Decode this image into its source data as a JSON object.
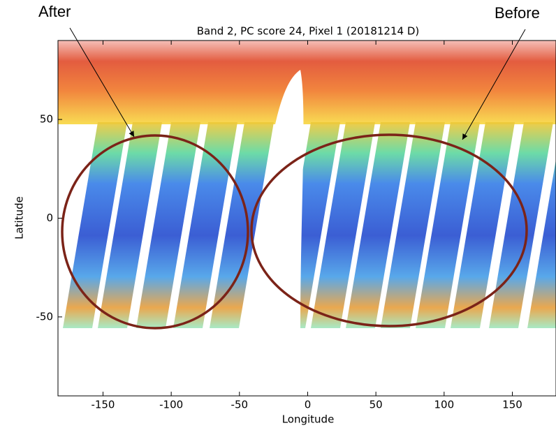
{
  "chart_data": {
    "type": "scatter",
    "title": "Band 2, PC score 24, Pixel 1 (20181214 D)",
    "x_label": "Longitude",
    "y_label": "Latitude",
    "annotations": [
      "After",
      "Before"
    ],
    "xlim": [
      -183,
      182
    ],
    "xticks": [
      -150,
      -100,
      -50,
      0,
      50,
      100,
      150
    ],
    "ylim": [
      -90,
      90
    ],
    "yticks": [
      -50,
      0,
      50
    ]
  }
}
